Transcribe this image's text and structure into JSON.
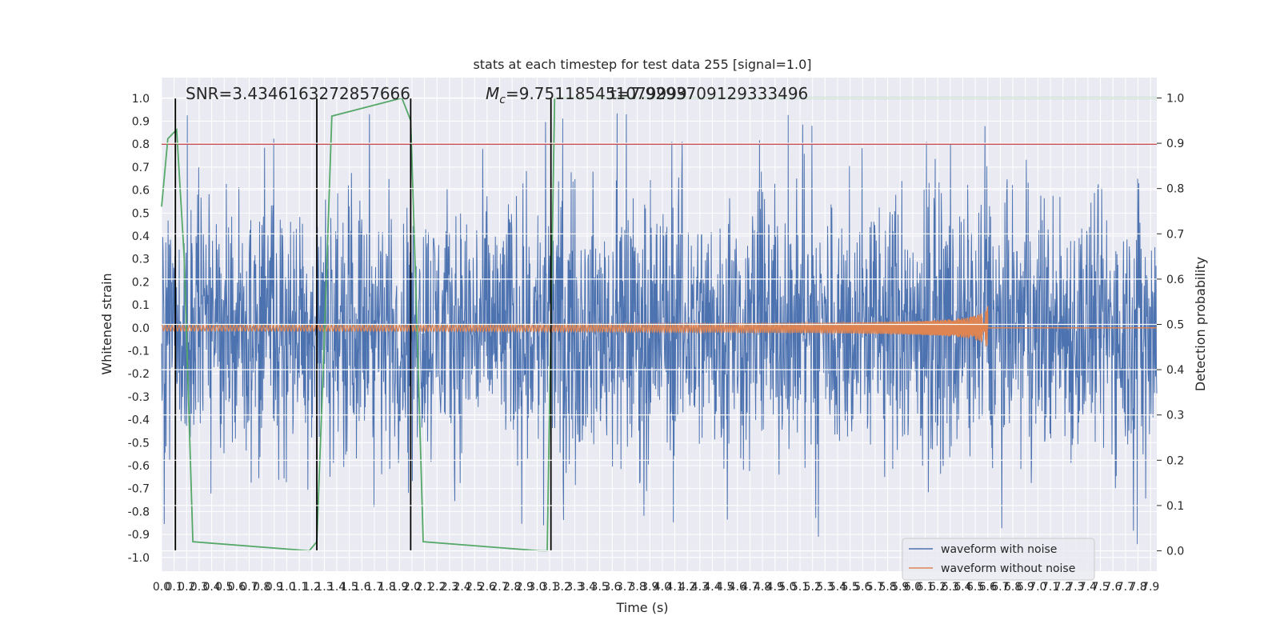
{
  "chart_data": {
    "type": "line",
    "title": "stats at each timestep for test data 255 [signal=1.0]",
    "xlabel": "Time (s)",
    "ylabel": "Whitened strain",
    "y2label": "Detection probability",
    "xlim": [
      0.0,
      7.95
    ],
    "ylim": [
      -1.06,
      1.09
    ],
    "y2lim": [
      -0.045,
      1.045
    ],
    "x_ticks": [
      0.0,
      0.1,
      0.2,
      0.3,
      0.4,
      0.5,
      0.6,
      0.7,
      0.8,
      0.9,
      1.0,
      1.1,
      1.2,
      1.3,
      1.4,
      1.5,
      1.6,
      1.7,
      1.8,
      1.9,
      2.0,
      2.1,
      2.2,
      2.3,
      2.4,
      2.5,
      2.6,
      2.7,
      2.8,
      2.9,
      3.0,
      3.1,
      3.2,
      3.3,
      3.4,
      3.5,
      3.6,
      3.7,
      3.8,
      3.9,
      4.0,
      4.1,
      4.2,
      4.3,
      4.4,
      4.5,
      4.6,
      4.7,
      4.8,
      4.9,
      5.0,
      5.1,
      5.2,
      5.3,
      5.4,
      5.5,
      5.6,
      5.7,
      5.8,
      5.9,
      6.0,
      6.1,
      6.2,
      6.3,
      6.4,
      6.5,
      6.6,
      6.7,
      6.8,
      6.9,
      7.0,
      7.1,
      7.2,
      7.3,
      7.4,
      7.5,
      7.6,
      7.7,
      7.8,
      7.9
    ],
    "y_ticks": [
      -1.0,
      -0.9,
      -0.8,
      -0.7,
      -0.6,
      -0.5,
      -0.4,
      -0.3,
      -0.2,
      -0.1,
      0.0,
      0.1,
      0.2,
      0.3,
      0.4,
      0.5,
      0.6,
      0.7,
      0.8,
      0.9,
      1.0
    ],
    "y2_ticks": [
      0.0,
      0.1,
      0.2,
      0.3,
      0.4,
      0.5,
      0.6,
      0.7,
      0.8,
      0.9,
      1.0
    ],
    "series": [
      {
        "name": "waveform with noise",
        "color": "#4c72b0",
        "amplitude_rms": 0.25,
        "peak_range": [
          -0.95,
          1.0
        ]
      },
      {
        "name": "waveform without noise",
        "color": "#dd8452",
        "chirp_end_time": 6.6,
        "peak_amplitude": 0.1
      }
    ],
    "detection_probability": {
      "color": "#55a868",
      "x": [
        0.0,
        0.05,
        0.12,
        0.18,
        0.25,
        1.18,
        1.24,
        1.3,
        1.36,
        1.92,
        1.99,
        2.04,
        2.09,
        3.02,
        3.08,
        3.14
      ],
      "y": [
        0.76,
        0.91,
        0.93,
        0.65,
        0.02,
        0.0,
        0.02,
        0.47,
        0.96,
        1.0,
        0.95,
        0.5,
        0.02,
        0.0,
        0.0,
        1.0
      ]
    },
    "vertical_lines": {
      "color": "#000000",
      "x": [
        0.11,
        1.24,
        1.99,
        3.11
      ]
    },
    "threshold": {
      "color": "#c44e52",
      "y": 0.8
    },
    "annotations": {
      "snr": "SNR=3.4346163272857666",
      "mc": "=9.751185451079999",
      "mc_symbol": "M",
      "mc_sub": "c",
      "t": "t=7.9293709129333496"
    },
    "legend": {
      "placement": "lower-right"
    },
    "grid": true
  }
}
